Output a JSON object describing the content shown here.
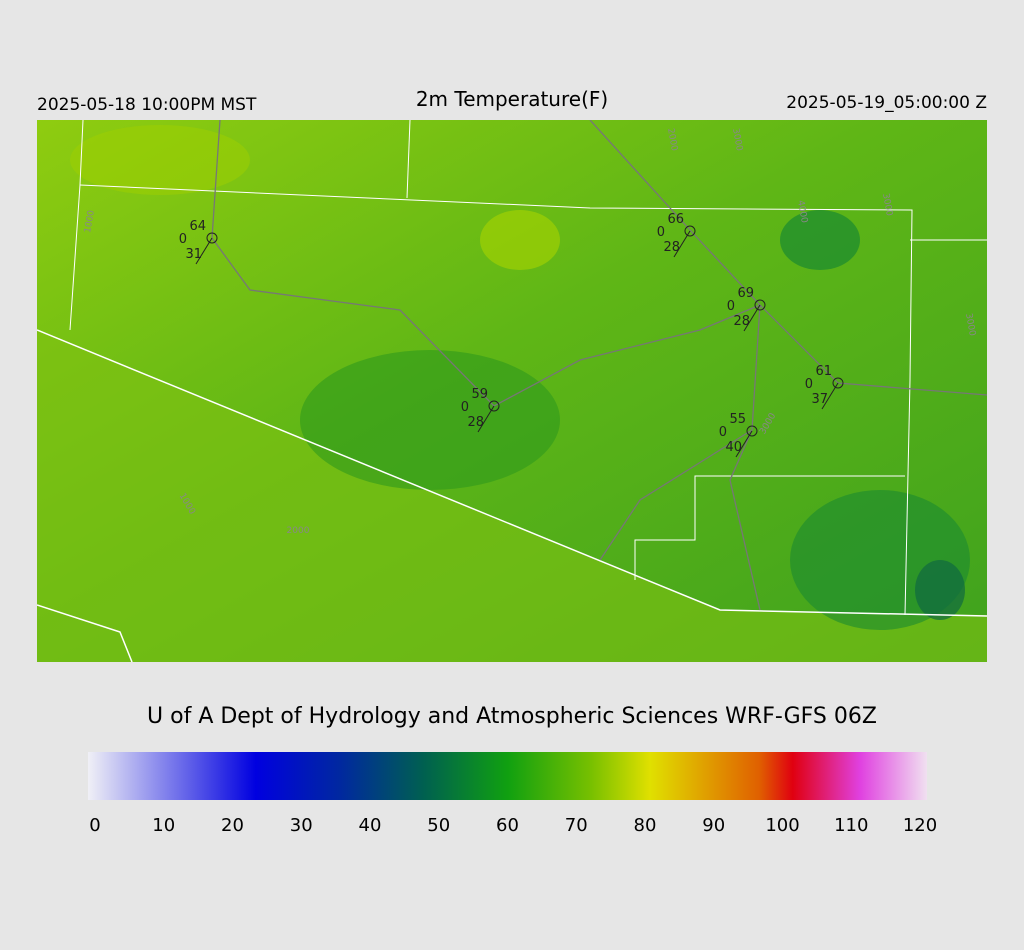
{
  "header": {
    "left": "2025-05-18 10:00PM MST",
    "title": "2m Temperature(F)",
    "right": "2025-05-19_05:00:00 Z"
  },
  "stations": [
    {
      "temp": "64",
      "precip": "0",
      "dew": "31"
    },
    {
      "temp": "66",
      "precip": "0",
      "dew": "28"
    },
    {
      "temp": "69",
      "precip": "0",
      "dew": "28"
    },
    {
      "temp": "61",
      "precip": "0",
      "dew": "37"
    },
    {
      "temp": "59",
      "precip": "0",
      "dew": "28"
    },
    {
      "temp": "55",
      "precip": "0",
      "dew": "40"
    }
  ],
  "contour_labels": [
    "1000",
    "2000",
    "3000",
    "4000",
    "3000",
    "3000",
    "1000",
    "2000",
    "3000"
  ],
  "footer": "U of A Dept of Hydrology and Atmospheric Sciences WRF-GFS 06Z",
  "colorbar": {
    "ticks": [
      0,
      10,
      20,
      30,
      40,
      50,
      60,
      70,
      80,
      90,
      100,
      110,
      120
    ]
  }
}
